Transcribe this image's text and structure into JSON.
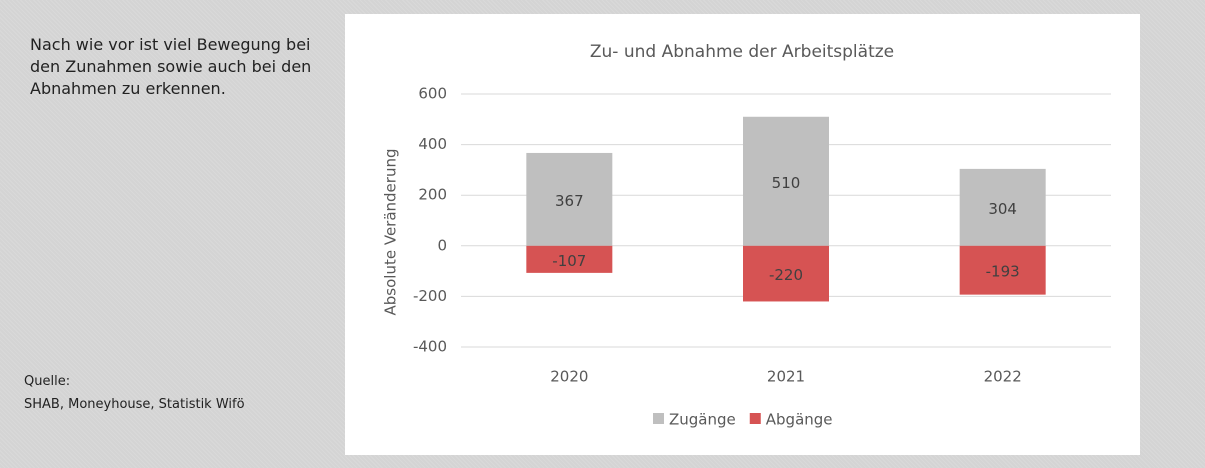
{
  "text": "Nach wie vor ist viel Bewegung bei den Zunahmen sowie auch bei den Abnahmen zu erkennen.",
  "source": {
    "heading": "Quelle:",
    "text": "SHAB, Moneyhouse, Statistik Wifö"
  },
  "chart_data": {
    "type": "stacked_bar",
    "title": "Zu- und Abnahme der Arbeitsplätze",
    "y_label": "Absolute Veränderung",
    "categories": [
      "2020",
      "2021",
      "2022"
    ],
    "series": [
      {
        "name": "Zugänge",
        "color": "#bfbfbf",
        "values": [
          367,
          510,
          304
        ]
      },
      {
        "name": "Abgänge",
        "color": "#d65353",
        "values": [
          -107,
          -220,
          -193
        ]
      }
    ],
    "ylim": [
      -400,
      600
    ],
    "yticks": [
      -400,
      -200,
      0,
      200,
      400,
      600
    ],
    "grid": true,
    "legend": "bottom"
  }
}
